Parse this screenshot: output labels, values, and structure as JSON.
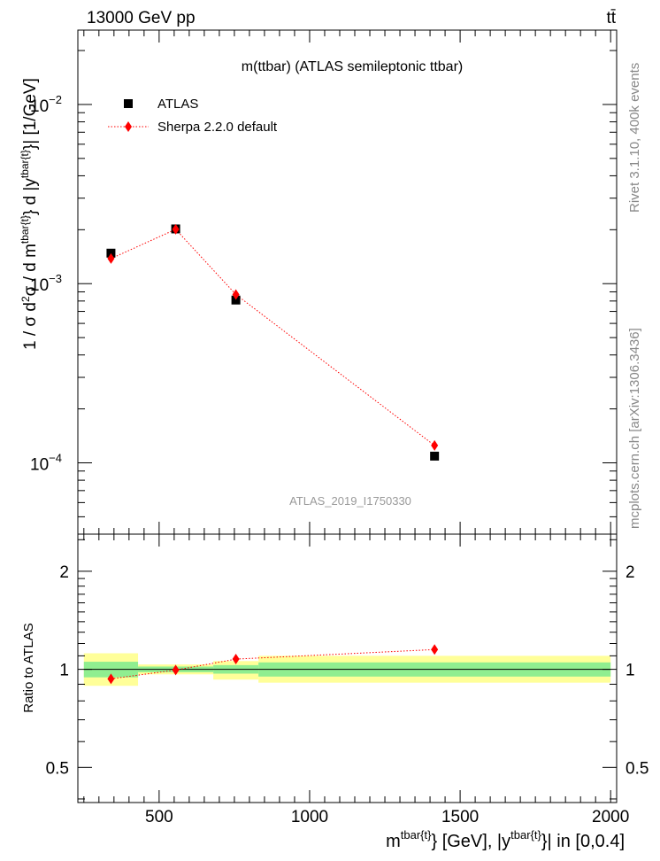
{
  "header": {
    "left": "13000 GeV pp",
    "right": "tt̄"
  },
  "side_text": {
    "upper": "Rivet 3.1.10, 400k events",
    "lower": "mcplots.cern.ch [arXiv:1306.3436]"
  },
  "chart_data": {
    "type": "scatter",
    "title": "m(ttbar) (ATLAS semileptonic ttbar)",
    "analysis_label": "ATLAS_2019_I1750330",
    "x_axis": {
      "label_main": "m",
      "label_sup": "tbar{t}",
      "label_mid": "} [GeV], |y",
      "label_sup2": "tbar{t}",
      "label_end": "}| in [0,0.4]",
      "range": [
        230,
        2020
      ],
      "ticks": [
        500,
        1000,
        1500,
        2000
      ],
      "tick_labels": [
        "500",
        "1000",
        "1500",
        "2000"
      ]
    },
    "main_panel": {
      "ylabel": {
        "p1": "1 / σ d",
        "p1sup": "2",
        "p2": "σ / d m",
        "p2sup": "tbar{t}",
        "p3": "} d |y",
        "p3sup": "tbar{t}",
        "p4": "}| [1/GeV]"
      },
      "yscale": "log",
      "ylim": [
        4e-05,
        0.026
      ],
      "major_ticks": [
        0.0001,
        0.001,
        0.01
      ],
      "major_tick_base": [
        "10",
        "10",
        "10"
      ],
      "major_tick_exp": [
        "−4",
        "−3",
        "−2"
      ],
      "legend_position": "top-left"
    },
    "ratio_panel": {
      "ylabel": "Ratio to ATLAS",
      "yscale": "log",
      "ylim": [
        0.39,
        2.6
      ],
      "ticks": [
        0.5,
        1,
        2
      ],
      "tick_labels": [
        "0.5",
        "1",
        "2"
      ]
    },
    "bins": [
      {
        "low": 250,
        "high": 430
      },
      {
        "low": 430,
        "high": 680
      },
      {
        "low": 680,
        "high": 830
      },
      {
        "low": 830,
        "high": 2000
      }
    ],
    "series": [
      {
        "name": "ATLAS",
        "color": "#000000",
        "marker": "square",
        "x": [
          340,
          555,
          755,
          1415
        ],
        "values": [
          0.00148,
          0.00202,
          0.00081,
          0.000109
        ],
        "ratio_band_stat": [
          [
            0.945,
            1.055
          ],
          [
            0.98,
            1.02
          ],
          [
            0.97,
            1.03
          ],
          [
            0.95,
            1.05
          ]
        ],
        "ratio_band_total": [
          [
            0.89,
            1.12
          ],
          [
            0.965,
            1.035
          ],
          [
            0.93,
            1.06
          ],
          [
            0.91,
            1.1
          ]
        ]
      },
      {
        "name": "Sherpa 2.2.0 default",
        "color": "#ff0000",
        "marker": "diamond",
        "line": "dotted",
        "x": [
          340,
          555,
          755,
          1415
        ],
        "values": [
          0.00138,
          0.00201,
          0.00087,
          0.000125
        ],
        "ratio": [
          0.935,
          0.995,
          1.075,
          1.15
        ]
      }
    ],
    "band_colors": {
      "stat": "#90ee90",
      "total": "#ffff99"
    }
  }
}
